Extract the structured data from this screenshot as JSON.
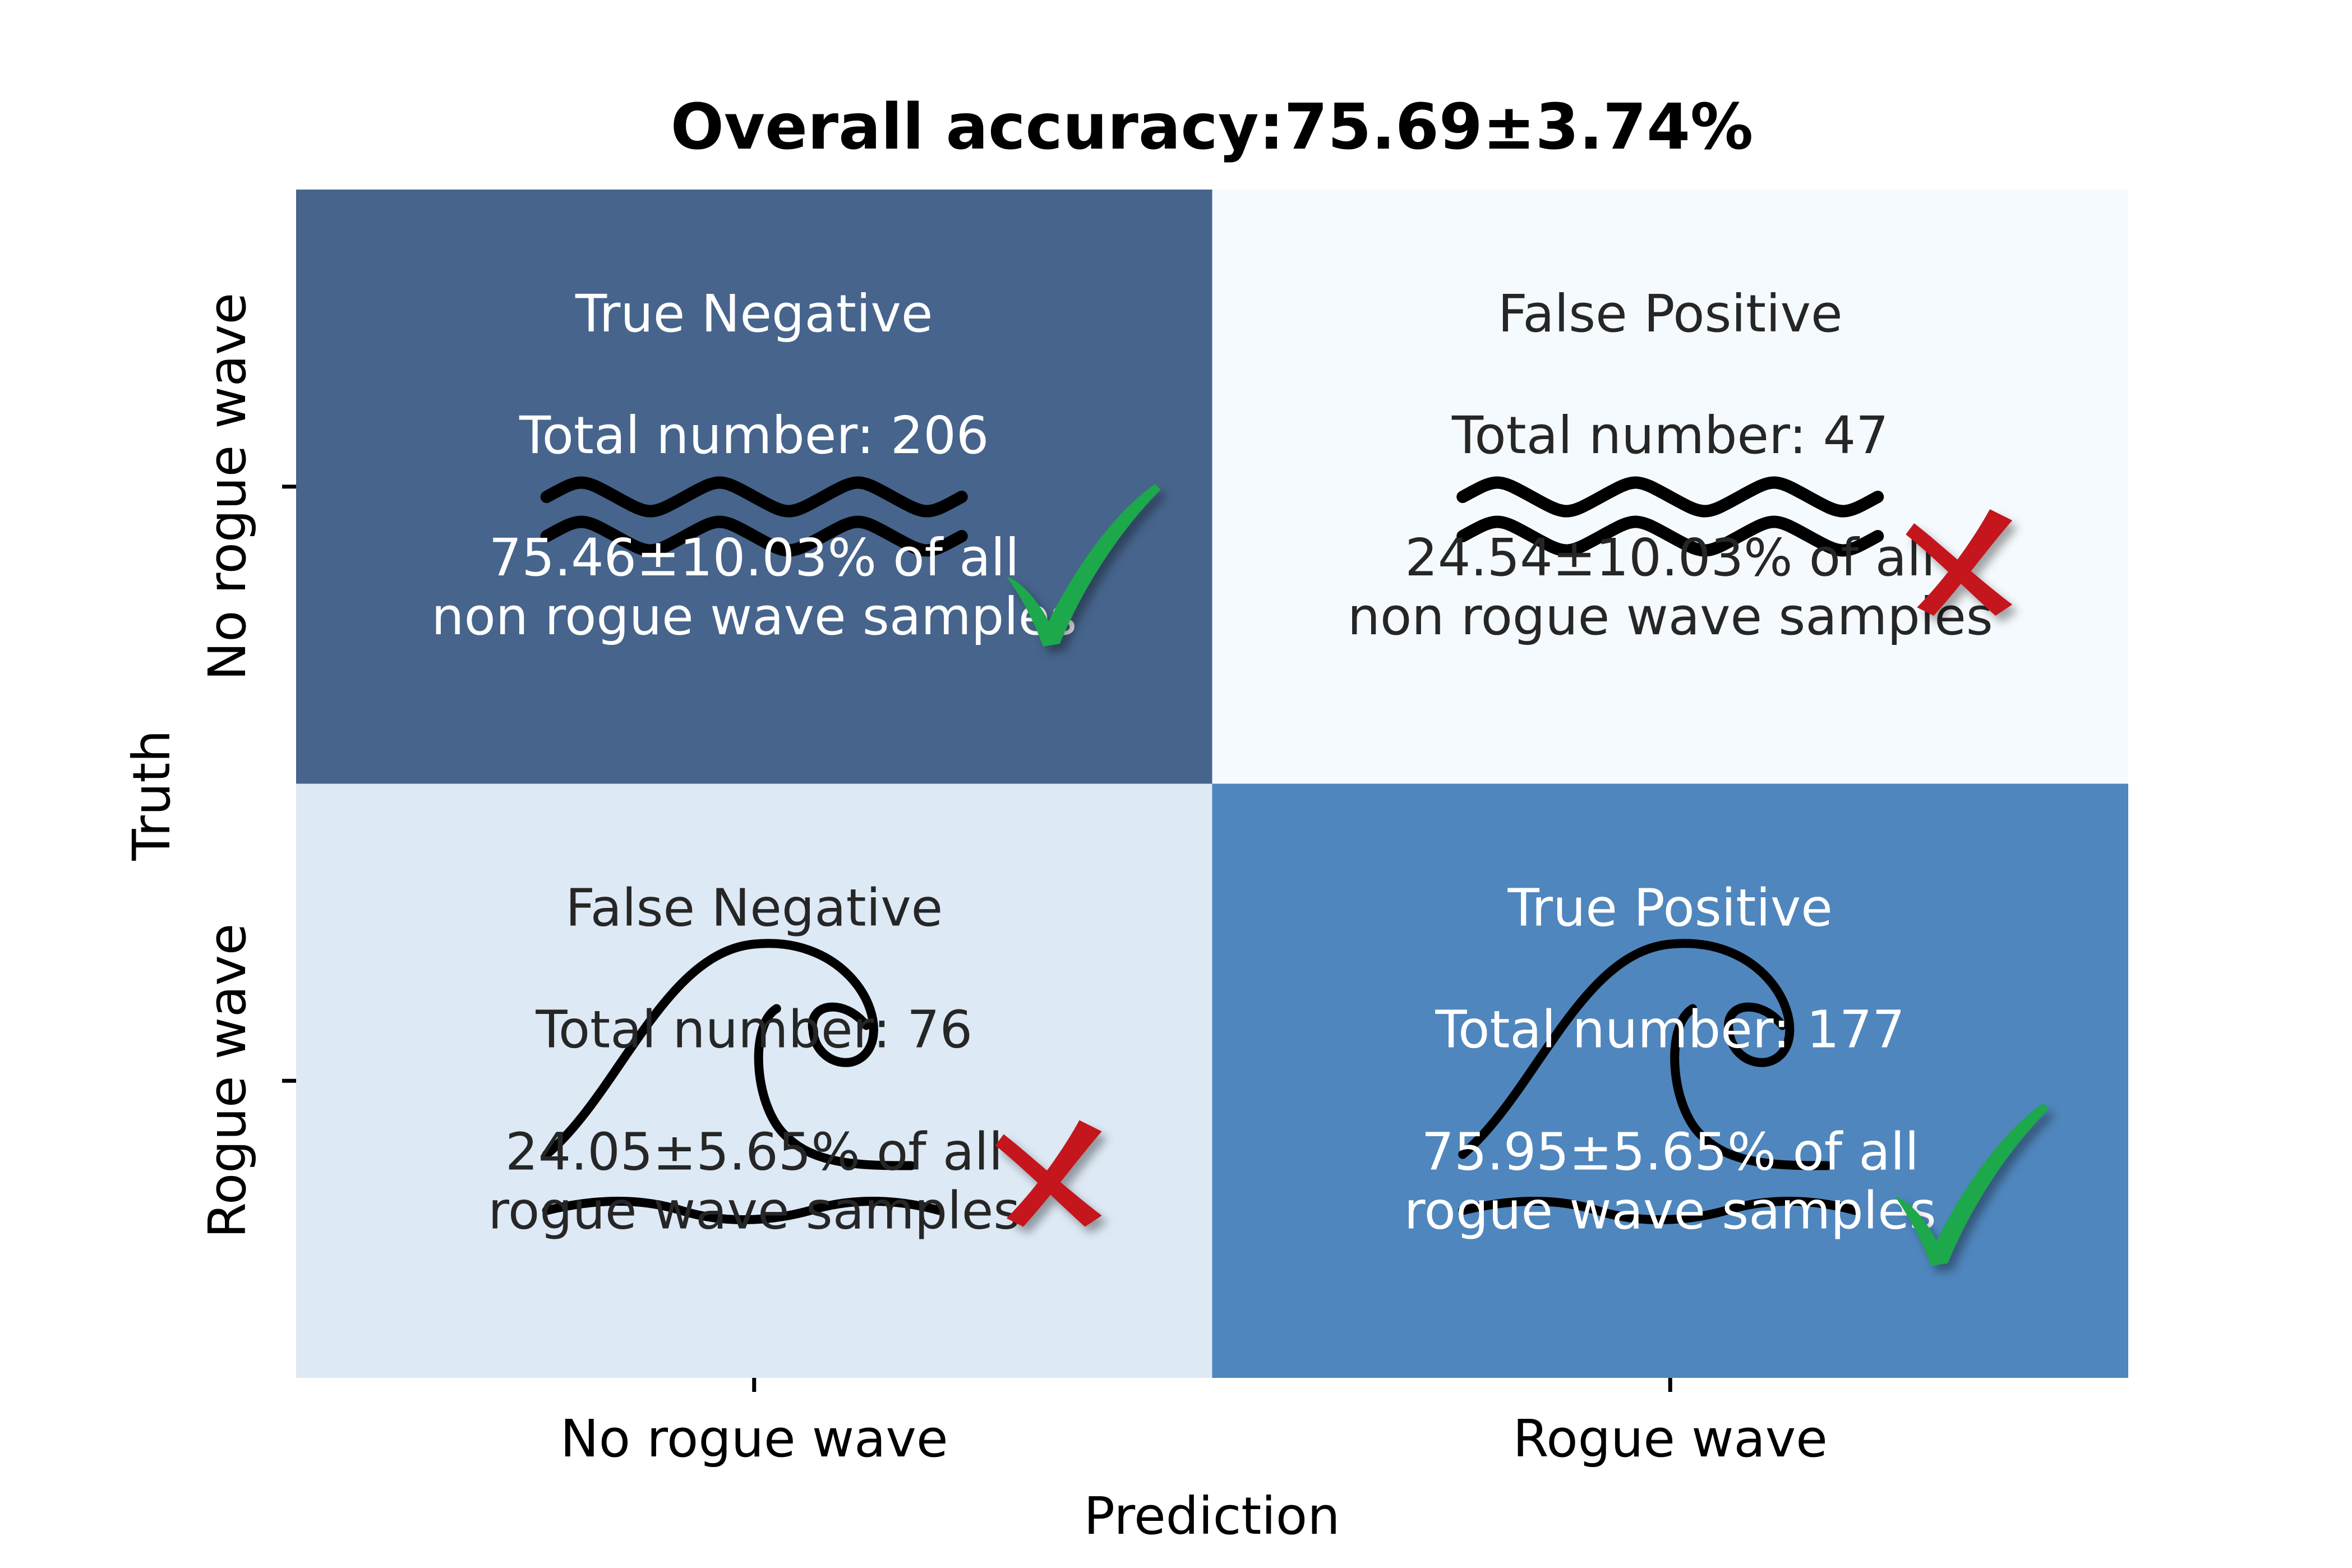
{
  "title": "Overall accuracy:75.69±3.74%",
  "chart_data": {
    "type": "heatmap",
    "title": "Overall accuracy:75.69±3.74%",
    "xlabel": "Prediction",
    "ylabel": "Truth",
    "x_categories": [
      "No rogue wave",
      "Rogue wave"
    ],
    "y_categories": [
      "No rogue wave",
      "Rogue wave"
    ],
    "colors": {
      "true_negative": "#46648c",
      "false_positive": "#f5fafe",
      "false_negative": "#dde9f5",
      "true_positive": "#4f86bd",
      "check": "#1aa84b",
      "cross": "#c4161c",
      "wave": "#000000"
    },
    "cells": [
      {
        "row": 0,
        "col": 0,
        "label": "True Negative",
        "count": 206,
        "count_text": "Total number: 206",
        "percent_line1": "75.46±10.03% of all",
        "percent_line2": "non rogue wave samples",
        "text_color": "#ffffff",
        "icon": "calm-wave-icon",
        "mark": "check-icon"
      },
      {
        "row": 0,
        "col": 1,
        "label": "False Positive",
        "count": 47,
        "count_text": "Total number: 47",
        "percent_line1": "24.54±10.03% of all",
        "percent_line2": "non rogue wave samples",
        "text_color": "#262626",
        "icon": "calm-wave-icon",
        "mark": "cross-icon"
      },
      {
        "row": 1,
        "col": 0,
        "label": "False Negative",
        "count": 76,
        "count_text": "Total number: 76",
        "percent_line1": "24.05±5.65% of all",
        "percent_line2": "rogue wave samples",
        "text_color": "#262626",
        "icon": "rogue-wave-icon",
        "mark": "cross-icon"
      },
      {
        "row": 1,
        "col": 1,
        "label": "True Positive",
        "count": 177,
        "count_text": "Total number: 177",
        "percent_line1": "75.95±5.65% of all",
        "percent_line2": "rogue wave samples",
        "text_color": "#ffffff",
        "icon": "rogue-wave-icon",
        "mark": "check-icon"
      }
    ]
  }
}
